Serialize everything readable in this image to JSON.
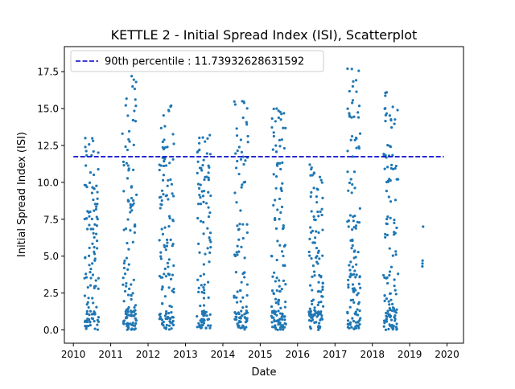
{
  "chart_data": {
    "type": "scatter",
    "title": "KETTLE 2 - Initial Spread Index (ISI), Scatterplot",
    "xlabel": "Date",
    "ylabel": "Initial Spread Index (ISI)",
    "xlim": [
      "2009-10-05",
      "2020-06-10"
    ],
    "ylim": [
      -0.9,
      19.2
    ],
    "x_ticks": [
      "2010",
      "2011",
      "2012",
      "2013",
      "2014",
      "2015",
      "2016",
      "2017",
      "2018",
      "2019",
      "2020"
    ],
    "y_ticks": [
      "0.0",
      "2.5",
      "5.0",
      "7.5",
      "10.0",
      "12.5",
      "15.0",
      "17.5"
    ],
    "percentile_line": {
      "label": "90th percentile : 11.73932628631592",
      "value": 11.73932628631592,
      "x_start": "2010-01-01",
      "x_end": "2019-12-01",
      "color": "#0000cc",
      "style": "dashed"
    },
    "legend_position": "upper left",
    "grid": false,
    "point_color": "#1f77b4",
    "seasons": [
      {
        "year": 2010,
        "start": "2010-04-20",
        "end": "2010-09-05",
        "max": 13.0,
        "n": 120
      },
      {
        "year": 2011,
        "start": "2011-04-25",
        "end": "2011-09-10",
        "max": 17.2,
        "n": 130
      },
      {
        "year": 2012,
        "start": "2012-04-20",
        "end": "2012-09-10",
        "max": 15.2,
        "n": 130
      },
      {
        "year": 2013,
        "start": "2013-04-20",
        "end": "2013-09-05",
        "max": 13.2,
        "n": 110
      },
      {
        "year": 2014,
        "start": "2014-04-20",
        "end": "2014-09-05",
        "max": 15.5,
        "n": 110
      },
      {
        "year": 2015,
        "start": "2015-04-20",
        "end": "2015-09-10",
        "max": 15.0,
        "n": 135
      },
      {
        "year": 2016,
        "start": "2016-04-20",
        "end": "2016-09-10",
        "max": 11.2,
        "n": 125
      },
      {
        "year": 2017,
        "start": "2017-05-01",
        "end": "2017-09-05",
        "max": 17.7,
        "n": 130
      },
      {
        "year": 2018,
        "start": "2018-04-20",
        "end": "2018-09-10",
        "max": 16.1,
        "n": 125
      }
    ],
    "isolated_points": [
      {
        "x": "2019-05-05",
        "y": 4.3
      },
      {
        "x": "2019-05-06",
        "y": 4.5
      },
      {
        "x": "2019-05-07",
        "y": 4.7
      },
      {
        "x": "2019-05-12",
        "y": 7.0
      }
    ]
  }
}
